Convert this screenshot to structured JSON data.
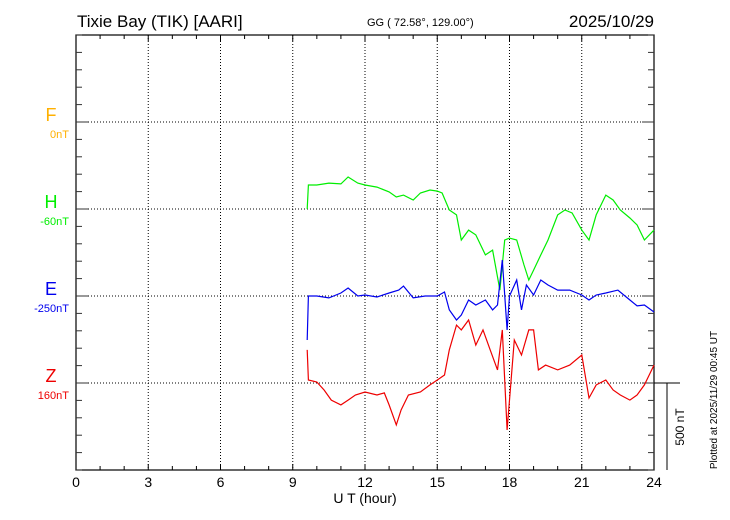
{
  "chart_data": {
    "type": "line",
    "title": "Tixie Bay (TIK)  [AARI]",
    "subtitle": "GG ( 72.58°, 129.00°)",
    "date": "2025/10/29",
    "xlabel": "U T (hour)",
    "xlim": [
      0,
      24
    ],
    "xticks": [
      "0",
      "3",
      "6",
      "9",
      "12",
      "15",
      "18",
      "21",
      "24"
    ],
    "grid": true,
    "scale_bar": "500 nT",
    "footer": "Plotted at 2025/11/29 00:45 UT",
    "series": [
      {
        "name": "F",
        "baseline_label": "0nT",
        "color": "#ffb000",
        "points": []
      },
      {
        "name": "H",
        "baseline_label": "-60nT",
        "color": "#00ee00",
        "points": [
          [
            9.6,
            0
          ],
          [
            9.65,
            138
          ],
          [
            10,
            138
          ],
          [
            10.5,
            149
          ],
          [
            11,
            144
          ],
          [
            11.3,
            184
          ],
          [
            11.7,
            149
          ],
          [
            12,
            138
          ],
          [
            12.5,
            126
          ],
          [
            13,
            98
          ],
          [
            13.3,
            69
          ],
          [
            13.6,
            80
          ],
          [
            14,
            52
          ],
          [
            14.3,
            92
          ],
          [
            14.7,
            109
          ],
          [
            15,
            103
          ],
          [
            15.2,
            92
          ],
          [
            15.5,
            -6
          ],
          [
            15.8,
            -34
          ],
          [
            16,
            -178
          ],
          [
            16.3,
            -121
          ],
          [
            16.6,
            -149
          ],
          [
            17,
            -264
          ],
          [
            17.3,
            -236
          ],
          [
            17.6,
            -466
          ],
          [
            17.8,
            -178
          ],
          [
            18,
            -167
          ],
          [
            18.3,
            -178
          ],
          [
            18.6,
            -322
          ],
          [
            18.8,
            -408
          ],
          [
            19,
            -351
          ],
          [
            19.3,
            -264
          ],
          [
            19.6,
            -178
          ],
          [
            20,
            -34
          ],
          [
            20.3,
            -6
          ],
          [
            20.6,
            -23
          ],
          [
            21,
            -121
          ],
          [
            21.3,
            -178
          ],
          [
            21.6,
            -34
          ],
          [
            22,
            80
          ],
          [
            22.3,
            52
          ],
          [
            22.6,
            -6
          ],
          [
            23,
            -52
          ],
          [
            23.3,
            -92
          ],
          [
            23.6,
            -178
          ],
          [
            24,
            -121
          ]
        ]
      },
      {
        "name": "E",
        "baseline_label": "-250nT",
        "color": "#0000ee",
        "points": [
          [
            9.6,
            -253
          ],
          [
            9.65,
            0
          ],
          [
            10,
            0
          ],
          [
            10.5,
            -11
          ],
          [
            11,
            17
          ],
          [
            11.3,
            46
          ],
          [
            11.7,
            0
          ],
          [
            12,
            6
          ],
          [
            12.5,
            -6
          ],
          [
            13,
            17
          ],
          [
            13.4,
            34
          ],
          [
            13.6,
            57
          ],
          [
            14,
            -11
          ],
          [
            14.5,
            0
          ],
          [
            15,
            0
          ],
          [
            15.3,
            23
          ],
          [
            15.5,
            -80
          ],
          [
            15.8,
            -138
          ],
          [
            16,
            -109
          ],
          [
            16.3,
            -23
          ],
          [
            16.6,
            -52
          ],
          [
            17,
            -23
          ],
          [
            17.3,
            -80
          ],
          [
            17.5,
            -52
          ],
          [
            17.7,
            207
          ],
          [
            17.9,
            -195
          ],
          [
            18,
            0
          ],
          [
            18.3,
            92
          ],
          [
            18.5,
            -80
          ],
          [
            18.7,
            63
          ],
          [
            19,
            6
          ],
          [
            19.3,
            92
          ],
          [
            19.6,
            63
          ],
          [
            20,
            34
          ],
          [
            20.5,
            34
          ],
          [
            21,
            6
          ],
          [
            21.3,
            -23
          ],
          [
            21.6,
            6
          ],
          [
            22,
            17
          ],
          [
            22.5,
            34
          ],
          [
            23,
            -23
          ],
          [
            23.3,
            -57
          ],
          [
            23.6,
            -52
          ],
          [
            24,
            -92
          ]
        ]
      },
      {
        "name": "Z",
        "baseline_label": "160nT",
        "color": "#ee0000",
        "points": [
          [
            9.6,
            190
          ],
          [
            9.65,
            17
          ],
          [
            10,
            6
          ],
          [
            10.3,
            -40
          ],
          [
            10.6,
            -98
          ],
          [
            11,
            -126
          ],
          [
            11.3,
            -98
          ],
          [
            11.6,
            -69
          ],
          [
            12,
            -52
          ],
          [
            12.5,
            -69
          ],
          [
            12.8,
            -57
          ],
          [
            13,
            -126
          ],
          [
            13.3,
            -241
          ],
          [
            13.5,
            -155
          ],
          [
            13.8,
            -69
          ],
          [
            14.3,
            -52
          ],
          [
            14.7,
            -11
          ],
          [
            15,
            17
          ],
          [
            15.3,
            46
          ],
          [
            15.5,
            190
          ],
          [
            15.8,
            333
          ],
          [
            16,
            305
          ],
          [
            16.3,
            362
          ],
          [
            16.6,
            218
          ],
          [
            16.9,
            305
          ],
          [
            17.2,
            190
          ],
          [
            17.5,
            75
          ],
          [
            17.7,
            305
          ],
          [
            17.9,
            -270
          ],
          [
            18,
            -98
          ],
          [
            18.2,
            247
          ],
          [
            18.5,
            161
          ],
          [
            18.8,
            305
          ],
          [
            19,
            305
          ],
          [
            19.2,
            75
          ],
          [
            19.5,
            103
          ],
          [
            20,
            75
          ],
          [
            20.5,
            103
          ],
          [
            21,
            161
          ],
          [
            21.3,
            -86
          ],
          [
            21.6,
            -11
          ],
          [
            22,
            17
          ],
          [
            22.3,
            -40
          ],
          [
            22.6,
            -69
          ],
          [
            23,
            -98
          ],
          [
            23.3,
            -69
          ],
          [
            23.6,
            -11
          ],
          [
            24,
            103
          ]
        ]
      }
    ]
  }
}
